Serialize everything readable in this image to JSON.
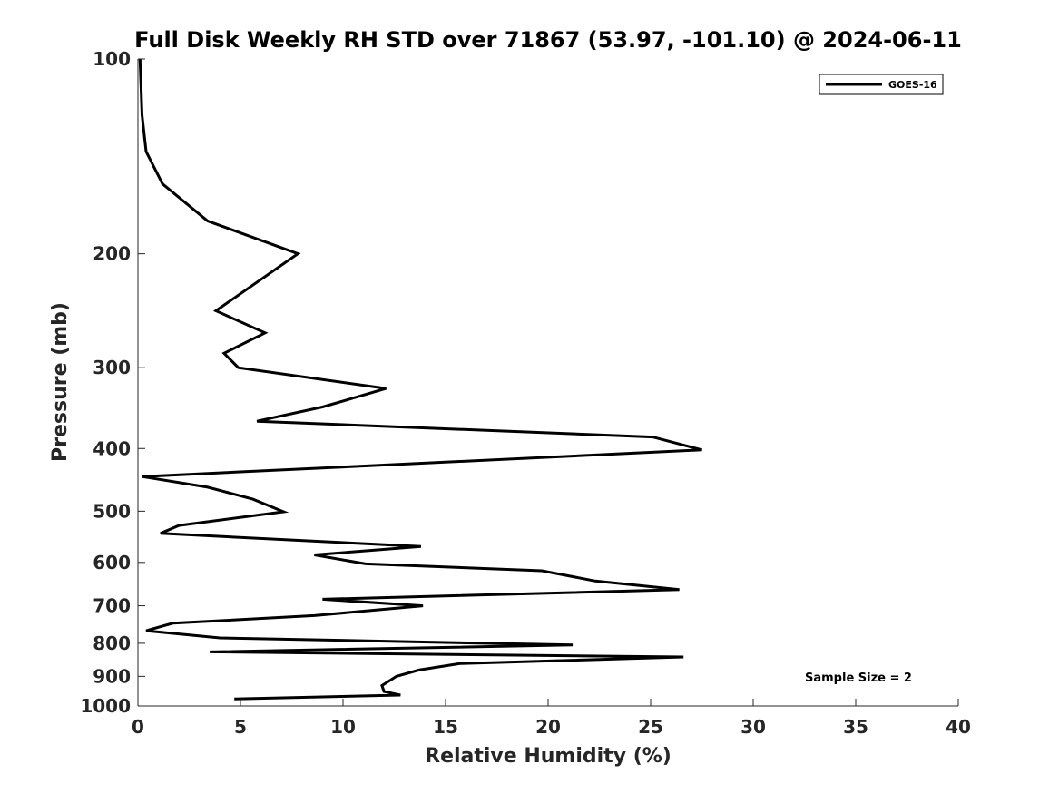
{
  "chart_data": {
    "type": "line",
    "title": "Full Disk Weekly RH STD over 71867 (53.97, -101.10) @ 2024-06-11",
    "xlabel": "Relative Humidity (%)",
    "ylabel": "Pressure (mb)",
    "xlim": [
      0,
      40
    ],
    "ylim": [
      1000,
      100
    ],
    "yscale": "log",
    "y_reversed": true,
    "x_ticks": [
      "0",
      "5",
      "10",
      "15",
      "20",
      "25",
      "30",
      "35",
      "40"
    ],
    "y_ticks": [
      "100",
      "200",
      "300",
      "400",
      "500",
      "600",
      "700",
      "800",
      "900",
      "1000"
    ],
    "grid": false,
    "legend": {
      "position": "top-right",
      "entries": [
        "GOES-16"
      ]
    },
    "annotation": "Sample Size = 2",
    "series": [
      {
        "name": "GOES-16",
        "color": "#000000",
        "points": [
          [
            4.7,
            975
          ],
          [
            12.8,
            962
          ],
          [
            12.0,
            950
          ],
          [
            11.9,
            930
          ],
          [
            12.6,
            900
          ],
          [
            13.7,
            880
          ],
          [
            15.7,
            860
          ],
          [
            26.6,
            840
          ],
          [
            3.5,
            825
          ],
          [
            21.2,
            805
          ],
          [
            4.0,
            785
          ],
          [
            0.4,
            765
          ],
          [
            1.7,
            745
          ],
          [
            8.6,
            725
          ],
          [
            13.9,
            700
          ],
          [
            9.0,
            684
          ],
          [
            26.4,
            661
          ],
          [
            22.3,
            641
          ],
          [
            19.7,
            618
          ],
          [
            11.1,
            603
          ],
          [
            8.6,
            584
          ],
          [
            13.8,
            567
          ],
          [
            1.1,
            541
          ],
          [
            2.0,
            526
          ],
          [
            7.1,
            501
          ],
          [
            5.6,
            479
          ],
          [
            3.4,
            459
          ],
          [
            0.2,
            442
          ],
          [
            27.5,
            402
          ],
          [
            25.1,
            384
          ],
          [
            5.8,
            363
          ],
          [
            9.0,
            345
          ],
          [
            12.1,
            323
          ],
          [
            4.9,
            300
          ],
          [
            4.2,
            285
          ],
          [
            6.2,
            265
          ],
          [
            3.8,
            245
          ],
          [
            7.8,
            200
          ],
          [
            3.4,
            178
          ],
          [
            1.2,
            156
          ],
          [
            0.4,
            139
          ],
          [
            0.2,
            122
          ],
          [
            0.1,
            100
          ]
        ]
      }
    ]
  }
}
